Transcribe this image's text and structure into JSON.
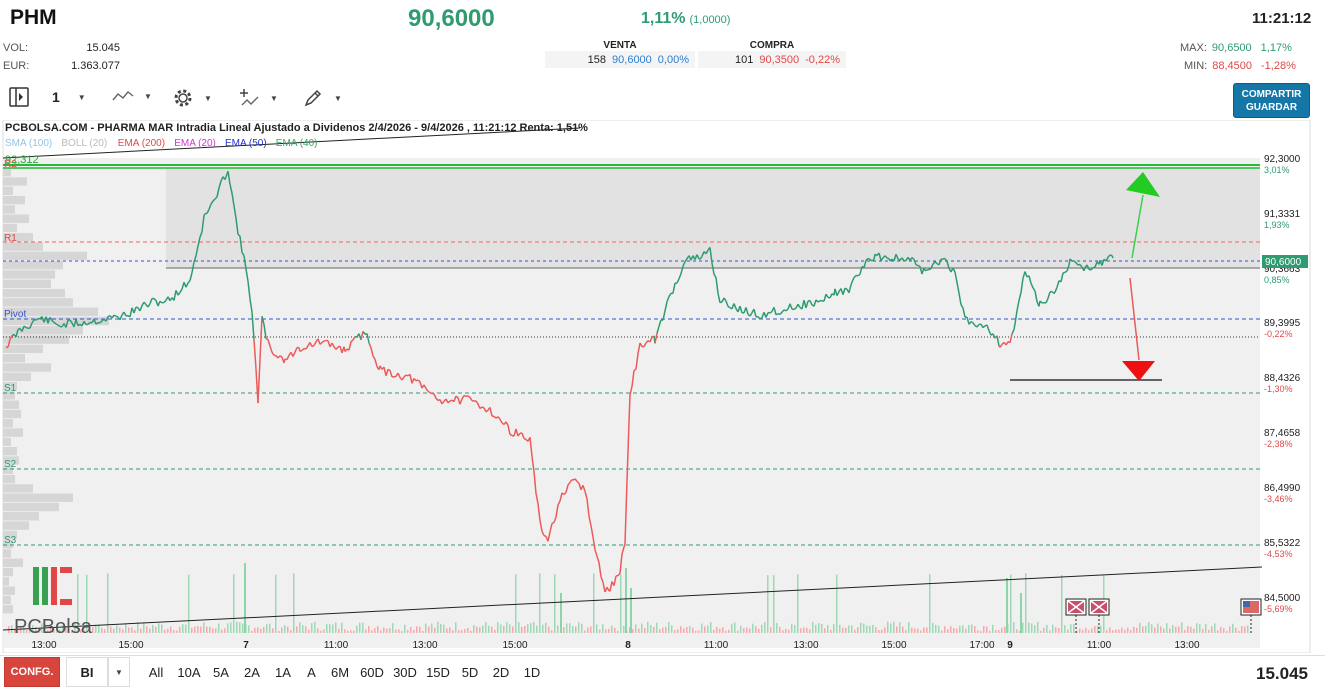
{
  "header": {
    "ticker": "PHM",
    "price": "90,6000",
    "change_pct": "1,11%",
    "change_abs": "(1,0000)",
    "time": "11:21:12"
  },
  "stats": {
    "vol_label": "VOL:",
    "vol_value": "15.045",
    "eur_label": "EUR:",
    "eur_value": "1.363.077"
  },
  "book": {
    "sell_label": "VENTA",
    "sell_qty": "158",
    "sell_price": "90,6000",
    "sell_pct": "0,00%",
    "buy_label": "COMPRA",
    "buy_qty": "101",
    "buy_price": "90,3500",
    "buy_pct": "-0,22%"
  },
  "range": {
    "max_label": "MAX:",
    "max_value": "90,6500",
    "max_pct": "1,17%",
    "min_label": "MIN:",
    "min_value": "88,4500",
    "min_pct": "-1,28%"
  },
  "toolbar": {
    "interval": "1",
    "share_line1": "COMPARTIR",
    "share_line2": "GUARDAR",
    "icons": [
      "panel-toggle-icon",
      "line-chart-icon",
      "gear-icon",
      "add-indicator-icon",
      "drawing-pen-icon"
    ]
  },
  "chart": {
    "title": "PCBOLSA.COM - PHARMA MAR Intradia Lineal Ajustado a Dividenos 2/4/2026 - 9/4/2026 , 11:21:12 Renta: 1,51%",
    "legend": [
      {
        "label": "SMA (100)",
        "color": "#8fc3e8"
      },
      {
        "label": "BOLL (20)",
        "color": "#bbbbbb"
      },
      {
        "label": "EMA (200)",
        "color": "#e04848"
      },
      {
        "label": "EMA (20)",
        "color": "#d534d5"
      },
      {
        "label": "EMA (50)",
        "color": "#2233cc"
      },
      {
        "label": "EMA (40)",
        "color": "#33aa66"
      }
    ],
    "top_value_label": "92,312",
    "level_labels": {
      "r2": "R2",
      "r1": "R1",
      "pivot": "Pivot",
      "s1": "S1",
      "s2": "S2",
      "s3": "S3"
    },
    "price_axis": [
      {
        "value": "92,3000",
        "pct": "3,01%",
        "pct_color": "#2e9b70"
      },
      {
        "value": "91,3331",
        "pct": "1,93%",
        "pct_color": "#2e9b70"
      },
      {
        "value": "90,3663",
        "pct": "0,85%",
        "pct_color": "#2e9b70"
      },
      {
        "value": "89,3995",
        "pct": "-0,22%",
        "pct_color": "#e04848"
      },
      {
        "value": "88,4326",
        "pct": "-1,30%",
        "pct_color": "#e04848"
      },
      {
        "value": "87,4658",
        "pct": "-2,38%",
        "pct_color": "#e04848"
      },
      {
        "value": "86,4990",
        "pct": "-3,46%",
        "pct_color": "#e04848"
      },
      {
        "value": "85,5322",
        "pct": "-4,53%",
        "pct_color": "#e04848"
      },
      {
        "value": "84,5000",
        "pct": "-5,69%",
        "pct_color": "#e04848"
      }
    ],
    "current_price_tag": "90,6000",
    "time_axis": [
      "13:00",
      "15:00",
      "7",
      "11:00",
      "13:00",
      "15:00",
      "8",
      "11:00",
      "13:00",
      "15:00",
      "17:00",
      "9",
      "11:00",
      "13:00"
    ],
    "watermark": "PCBolsa",
    "colors": {
      "up": "#2e9b70",
      "down": "#ec5a5a",
      "accent": "#1576a8"
    }
  },
  "bottom": {
    "conf_label": "CONFG.",
    "mode_label": "BI",
    "ranges": [
      "All",
      "10A",
      "5A",
      "2A",
      "1A",
      "A",
      "6M",
      "60D",
      "30D",
      "15D",
      "5D",
      "2D",
      "1D"
    ],
    "total": "15.045"
  }
}
